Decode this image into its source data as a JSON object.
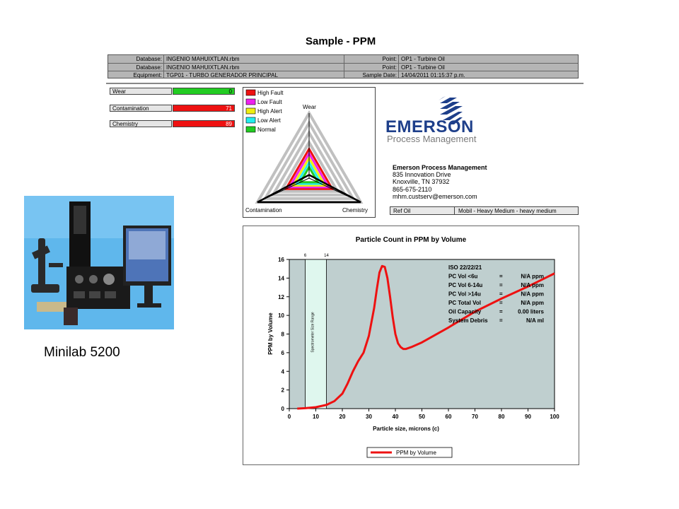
{
  "report": {
    "title": "Sample - PPM",
    "header_rows": [
      {
        "k1": "Database:",
        "v1": "INGENIO MAHUIXTLAN.rbm",
        "k2": "Point:",
        "v2": "OP1 - Turbine  Oil"
      },
      {
        "k1": "Database:",
        "v1": "INGENIO MAHUIXTLAN.rbm",
        "k2": "Point:",
        "v2": "OP1 - Turbine  Oil"
      },
      {
        "k1": "Equipment:",
        "v1": "TGP01 - TURBO GENERADOR PRINCIPAL",
        "k2": "Sample Date:",
        "v2": "14/04/2011 01:15:37 p.m."
      }
    ]
  },
  "gauges": [
    {
      "label": "Wear",
      "value": "0",
      "color": "#22cc22"
    },
    {
      "label": "Contamination",
      "value": "71",
      "color": "#ee1111"
    },
    {
      "label": "Chemistry",
      "value": "89",
      "color": "#ee1111"
    }
  ],
  "radar": {
    "legend": [
      {
        "label": "High Fault",
        "color": "#ee1111"
      },
      {
        "label": "Low Fault",
        "color": "#ee22ee"
      },
      {
        "label": "High Alert",
        "color": "#eeee11"
      },
      {
        "label": "Low Alert",
        "color": "#22eeee"
      },
      {
        "label": "Normal",
        "color": "#22cc22"
      }
    ],
    "axes": {
      "top": "Wear",
      "left": "Contamination",
      "right": "Chemistry"
    }
  },
  "company": {
    "logo_text": "EMERSON",
    "logo_sub": "Process Management",
    "name": "Emerson Process Management",
    "address1": "835 Innovation Drive",
    "address2": "Knoxville, TN 37932",
    "phone": "865-675-2110",
    "email": "mhm.custserv@emerson.com",
    "ref_label": "Ref Oil",
    "ref_value": "Mobil - Heavy Medium - heavy medium"
  },
  "chart": {
    "title": "Particle Count in PPM by Volume",
    "band_label": "Spectrometer Size Range",
    "band_ticks": [
      "6",
      "14"
    ],
    "stats": [
      {
        "k": "ISO 22/22/21",
        "v": ""
      },
      {
        "k": "PC Vol <6u",
        "eq": "=",
        "v": "N/A ppm"
      },
      {
        "k": "PC Vol 6-14u",
        "eq": "=",
        "v": "N/A ppm"
      },
      {
        "k": "PC Vol >14u",
        "eq": "=",
        "v": "N/A ppm"
      },
      {
        "k": "PC Total Vol",
        "eq": "=",
        "v": "N/A ppm"
      },
      {
        "k": "Oil Capacity",
        "eq": "=",
        "v": "0.00 liters"
      },
      {
        "k": "System Debris",
        "eq": "=",
        "v": "N/A ml"
      }
    ],
    "legend_label": "PPM by Volume"
  },
  "chart_data": {
    "type": "line",
    "title": "Particle Count in PPM by Volume",
    "xlabel": "Particle size, microns (c)",
    "ylabel": "PPM by Volume",
    "xlim": [
      0,
      100
    ],
    "ylim": [
      0,
      16
    ],
    "xticks": [
      0,
      10,
      20,
      30,
      40,
      50,
      60,
      70,
      80,
      90,
      100
    ],
    "yticks": [
      0,
      2,
      4,
      6,
      8,
      10,
      12,
      14,
      16
    ],
    "grid": false,
    "legend": "bottom",
    "shaded_range": [
      6,
      14
    ],
    "series": [
      {
        "name": "PPM by Volume",
        "color": "#ee1111",
        "x": [
          3,
          6,
          10,
          14,
          17,
          20,
          22,
          24,
          26,
          28,
          30,
          32,
          33,
          34,
          35,
          36,
          37,
          38,
          39,
          40,
          41,
          42,
          43,
          44,
          46,
          50,
          55,
          60,
          70,
          80,
          90,
          100
        ],
        "y": [
          0,
          0.05,
          0.15,
          0.4,
          0.8,
          1.6,
          2.7,
          4,
          5.1,
          6,
          7.8,
          10.8,
          12.8,
          14.6,
          15.3,
          15.2,
          14,
          12,
          9.8,
          8,
          7,
          6.6,
          6.4,
          6.4,
          6.6,
          7.1,
          7.9,
          8.7,
          10.4,
          11.8,
          13.1,
          14.5
        ]
      }
    ]
  },
  "photo": {
    "caption": "Minilab 5200"
  }
}
